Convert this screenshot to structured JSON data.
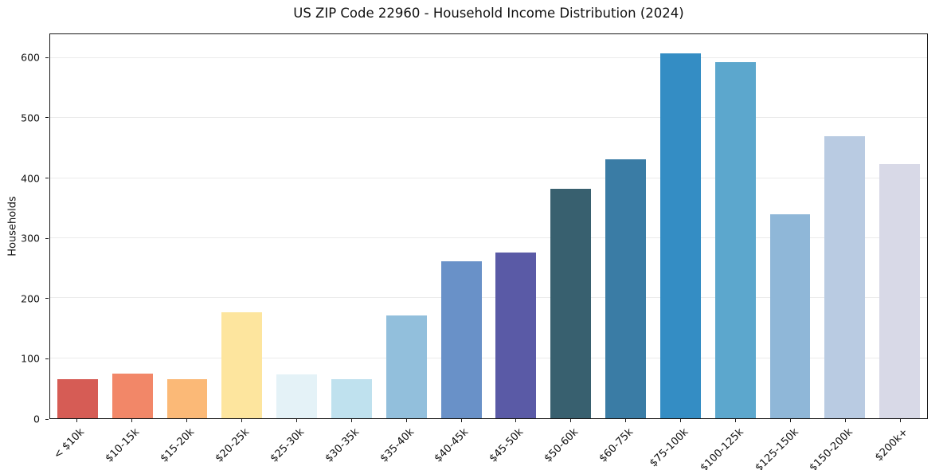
{
  "chart_data": {
    "type": "bar",
    "title": "US ZIP Code 22960 - Household Income Distribution (2024)",
    "xlabel": "",
    "ylabel": "Households",
    "categories": [
      "< $10k",
      "$10-15k",
      "$15-20k",
      "$20-25k",
      "$25-30k",
      "$30-35k",
      "$35-40k",
      "$40-45k",
      "$45-50k",
      "$50-60k",
      "$60-75k",
      "$75-100k",
      "$100-125k",
      "$125-150k",
      "$150-200k",
      "$200k+"
    ],
    "values": [
      65,
      75,
      65,
      177,
      73,
      65,
      171,
      261,
      276,
      383,
      432,
      608,
      593,
      340,
      470,
      424
    ],
    "bar_colors": [
      "#d65c55",
      "#f28768",
      "#fbb977",
      "#fde59e",
      "#e4f2f7",
      "#bfe1ee",
      "#92bfdc",
      "#6991c8",
      "#5a5aa6",
      "#38606f",
      "#3a7ca5",
      "#348dc4",
      "#5ca7cd",
      "#8fb7d8",
      "#b9cbe2",
      "#d8d9e7"
    ],
    "yticks": [
      0,
      100,
      200,
      300,
      400,
      500,
      600
    ],
    "ylim": [
      0,
      640
    ],
    "grid": true,
    "grid_color": "#ebebeb",
    "spine_color": "#1a1a1a",
    "background_color": "#ffffff",
    "legend": "none"
  }
}
